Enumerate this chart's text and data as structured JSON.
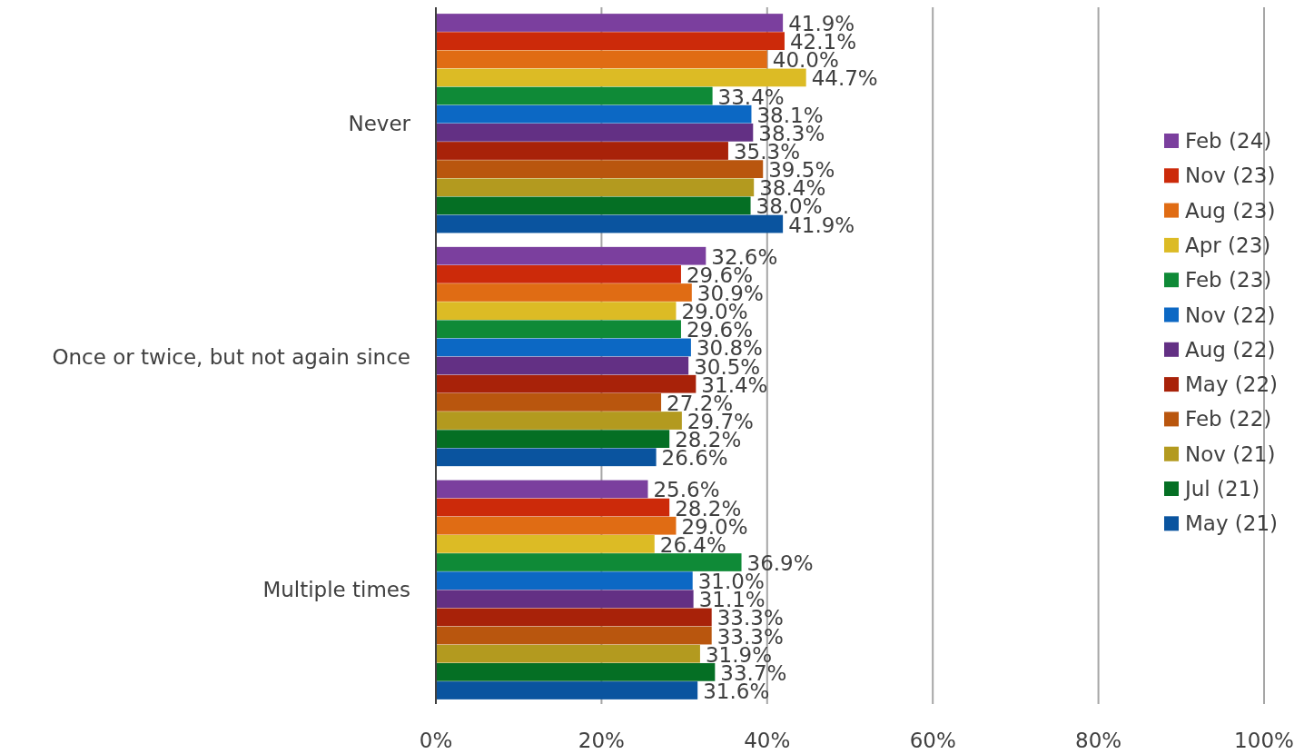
{
  "chart_data": {
    "type": "bar",
    "orientation": "horizontal",
    "categories": [
      "Never",
      "Once or twice, but not again since",
      "Multiple times"
    ],
    "xlim": [
      0,
      100
    ],
    "xticks": [
      {
        "value": 0,
        "label": "0%"
      },
      {
        "value": 20,
        "label": "20%"
      },
      {
        "value": 40,
        "label": "40%"
      },
      {
        "value": 60,
        "label": "60%"
      },
      {
        "value": 80,
        "label": "80%"
      },
      {
        "value": 100,
        "label": "100%"
      }
    ],
    "grid": "x",
    "legend": "right",
    "series": [
      {
        "name": "Feb (24)",
        "color": "#7b3f9e",
        "values": [
          41.9,
          32.6,
          25.6
        ],
        "value_labels": [
          "41.9%",
          "32.6%",
          "25.6%"
        ]
      },
      {
        "name": "Nov (23)",
        "color": "#cc2a0a",
        "values": [
          42.1,
          29.6,
          28.2
        ],
        "value_labels": [
          "42.1%",
          "29.6%",
          "28.2%"
        ]
      },
      {
        "name": "Aug (23)",
        "color": "#e06c14",
        "values": [
          40.0,
          30.9,
          29.0
        ],
        "value_labels": [
          "40.0%",
          "30.9%",
          "29.0%"
        ]
      },
      {
        "name": "Apr (23)",
        "color": "#dcbb25",
        "values": [
          44.7,
          29.0,
          26.4
        ],
        "value_labels": [
          "44.7%",
          "29.0%",
          "26.4%"
        ]
      },
      {
        "name": "Feb (23)",
        "color": "#0f8a37",
        "values": [
          33.4,
          29.6,
          36.9
        ],
        "value_labels": [
          "33.4%",
          "29.6%",
          "36.9%"
        ]
      },
      {
        "name": "Nov (22)",
        "color": "#0c68c4",
        "values": [
          38.1,
          30.8,
          31.0
        ],
        "value_labels": [
          "38.1%",
          "30.8%",
          "31.0%"
        ]
      },
      {
        "name": "Aug (22)",
        "color": "#633084",
        "values": [
          38.3,
          30.5,
          31.1
        ],
        "value_labels": [
          "38.3%",
          "30.5%",
          "31.1%"
        ]
      },
      {
        "name": "May (22)",
        "color": "#a82209",
        "values": [
          35.3,
          31.4,
          33.3
        ],
        "value_labels": [
          "35.3%",
          "31.4%",
          "33.3%"
        ]
      },
      {
        "name": "Feb (22)",
        "color": "#b9560e",
        "values": [
          39.5,
          27.2,
          33.3
        ],
        "value_labels": [
          "39.5%",
          "27.2%",
          "33.3%"
        ]
      },
      {
        "name": "Nov (21)",
        "color": "#b39a1f",
        "values": [
          38.4,
          29.7,
          31.9
        ],
        "value_labels": [
          "38.4%",
          "29.7%",
          "31.9%"
        ]
      },
      {
        "name": "Jul (21)",
        "color": "#056f24",
        "values": [
          38.0,
          28.2,
          33.7
        ],
        "value_labels": [
          "38.0%",
          "28.2%",
          "33.7%"
        ]
      },
      {
        "name": "May (21)",
        "color": "#0a549f",
        "values": [
          41.9,
          26.6,
          31.6
        ],
        "value_labels": [
          "41.9%",
          "26.6%",
          "31.6%"
        ]
      }
    ]
  }
}
